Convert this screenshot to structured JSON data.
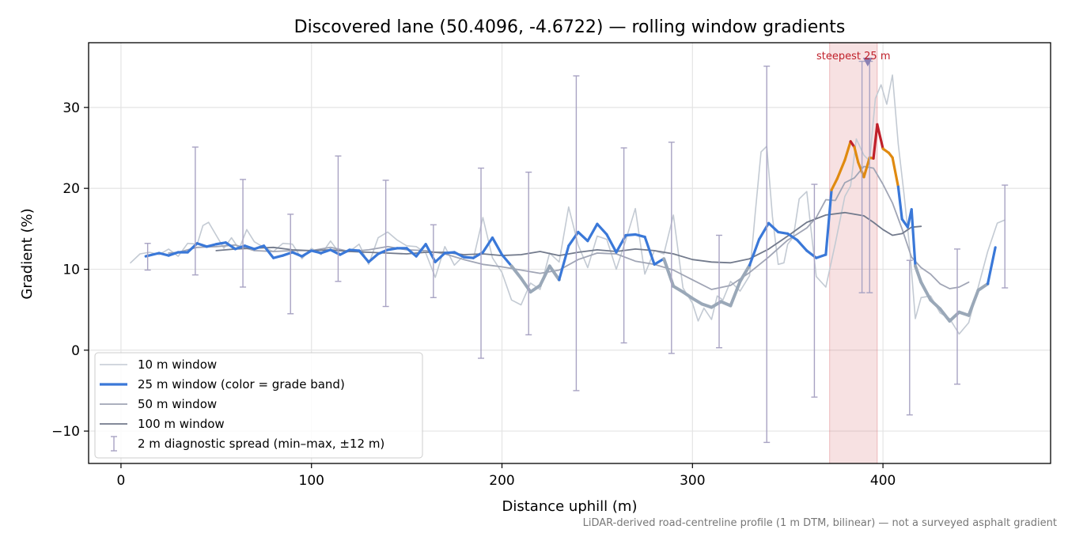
{
  "chart_data": {
    "type": "line",
    "title": "Discovered lane (50.4096, -4.6722) — rolling window gradients",
    "xlabel": "Distance uphill (m)",
    "ylabel": "Gradient (%)",
    "xlim": [
      -17,
      488
    ],
    "ylim": [
      -14,
      38
    ],
    "x_ticks": [
      0,
      100,
      200,
      300,
      400
    ],
    "y_ticks": [
      -10,
      0,
      10,
      20,
      30
    ],
    "x_tick_labels": [
      "0",
      "100",
      "200",
      "300",
      "400"
    ],
    "y_tick_labels": [
      "−10",
      "0",
      "10",
      "20",
      "30"
    ],
    "grid": true,
    "legend_position": "lower-left",
    "footnote": "LiDAR-derived road-centreline profile (1 m DTM, bilinear) — not a surveyed asphalt gradient",
    "highlight": {
      "label": "steepest 25 m",
      "x_start": 372,
      "x_end": 397,
      "marker_x": 392
    },
    "grade_band_colors": {
      "over_25": "#c0202a",
      "20_to_25": "#e08a10",
      "10_to_20": "#3a78d8",
      "under_10": "#9aa8b8"
    },
    "series": [
      {
        "name": "10 m window",
        "color": "#c3cad3",
        "x": [
          5,
          10,
          15,
          20,
          25,
          30,
          35,
          40,
          43,
          46,
          50,
          54,
          58,
          62,
          66,
          70,
          75,
          80,
          85,
          90,
          95,
          100,
          105,
          110,
          115,
          120,
          125,
          130,
          135,
          140,
          145,
          150,
          155,
          160,
          165,
          170,
          175,
          180,
          185,
          190,
          195,
          200,
          205,
          210,
          215,
          220,
          225,
          230,
          235,
          240,
          245,
          250,
          255,
          260,
          265,
          270,
          275,
          280,
          285,
          290,
          295,
          300,
          303,
          306,
          310,
          313,
          316,
          320,
          325,
          330,
          333,
          336,
          339,
          342,
          345,
          348,
          350,
          353,
          356,
          360,
          365,
          370,
          375,
          380,
          383,
          386,
          390,
          393,
          396,
          399,
          402,
          405,
          408,
          411,
          414,
          417,
          420,
          425,
          430,
          435,
          440,
          445,
          450,
          455,
          460,
          464
        ],
        "values": [
          10.8,
          11.9,
          12.1,
          11.8,
          12.5,
          11.6,
          13.2,
          13.1,
          15.4,
          15.8,
          14.2,
          12.6,
          13.9,
          12.5,
          14.9,
          13.4,
          12.7,
          12.2,
          13.2,
          13.1,
          11.3,
          12.6,
          11.8,
          13.5,
          11.9,
          12.2,
          13.1,
          10.6,
          13.9,
          14.6,
          13.6,
          12.9,
          12.8,
          12.0,
          9.0,
          12.8,
          10.5,
          11.7,
          11.3,
          16.4,
          11.4,
          9.6,
          6.2,
          5.6,
          8.3,
          7.5,
          12.0,
          10.9,
          17.7,
          13.0,
          10.2,
          14.1,
          13.7,
          10.0,
          13.6,
          17.5,
          9.4,
          12.3,
          11.9,
          16.7,
          7.7,
          5.8,
          3.6,
          5.2,
          3.8,
          6.7,
          6.2,
          8.5,
          7.3,
          9.2,
          17.1,
          24.5,
          25.2,
          16.5,
          10.6,
          10.8,
          13.1,
          14.0,
          18.7,
          19.6,
          9.1,
          7.8,
          13.2,
          19.0,
          20.3,
          26.1,
          24.1,
          23.4,
          31.1,
          32.8,
          30.4,
          34.0,
          25.5,
          19.4,
          12.7,
          3.9,
          6.5,
          6.7,
          4.6,
          3.9,
          2.0,
          3.4,
          7.8,
          12.2,
          15.7,
          16.1
        ]
      },
      {
        "name": "25 m window (color = grade band)",
        "color": "#3a78d8",
        "x": [
          13,
          20,
          25,
          30,
          35,
          40,
          45,
          50,
          55,
          60,
          65,
          70,
          75,
          80,
          85,
          90,
          95,
          100,
          105,
          110,
          115,
          120,
          125,
          130,
          135,
          140,
          145,
          150,
          155,
          160,
          165,
          170,
          175,
          180,
          185,
          190,
          195,
          200,
          205,
          210,
          215,
          220,
          225,
          230,
          235,
          240,
          245,
          250,
          255,
          260,
          265,
          270,
          275,
          280,
          285,
          290,
          295,
          300,
          305,
          310,
          315,
          320,
          325,
          330,
          335,
          340,
          345,
          350,
          355,
          360,
          365,
          370,
          373,
          376,
          380,
          383,
          385,
          387,
          390,
          393,
          395,
          397,
          400,
          403,
          405,
          408,
          410,
          413,
          415,
          417,
          420,
          425,
          430,
          435,
          440,
          445,
          450,
          455,
          459
        ],
        "values": [
          11.6,
          12.0,
          11.7,
          12.1,
          12.1,
          13.2,
          12.8,
          13.1,
          13.3,
          12.5,
          12.9,
          12.5,
          12.9,
          11.4,
          11.7,
          12.1,
          11.6,
          12.3,
          12.0,
          12.4,
          11.8,
          12.4,
          12.3,
          10.9,
          11.9,
          12.4,
          12.6,
          12.6,
          11.6,
          13.1,
          10.9,
          12.0,
          12.1,
          11.5,
          11.4,
          12.1,
          13.9,
          11.8,
          10.4,
          8.9,
          7.2,
          8.0,
          10.4,
          8.7,
          12.9,
          14.6,
          13.5,
          15.6,
          14.3,
          12.1,
          14.2,
          14.3,
          14.0,
          10.6,
          11.3,
          7.9,
          7.2,
          6.4,
          5.7,
          5.3,
          6.0,
          5.5,
          8.5,
          10.5,
          13.7,
          15.7,
          14.6,
          14.4,
          13.6,
          12.3,
          11.4,
          11.8,
          19.8,
          21.2,
          23.5,
          25.8,
          25.1,
          23.2,
          21.4,
          23.8,
          23.7,
          27.9,
          24.9,
          24.4,
          23.8,
          20.2,
          16.2,
          15.2,
          17.4,
          10.4,
          8.4,
          6.2,
          5.1,
          3.6,
          4.7,
          4.3,
          7.4,
          8.2,
          12.7
        ]
      },
      {
        "name": "50 m window",
        "color": "#a0a5b5",
        "x": [
          25,
          30,
          40,
          50,
          60,
          70,
          80,
          90,
          100,
          110,
          120,
          130,
          140,
          150,
          160,
          170,
          180,
          190,
          200,
          210,
          220,
          230,
          240,
          250,
          260,
          270,
          280,
          290,
          300,
          310,
          320,
          330,
          340,
          350,
          360,
          365,
          370,
          375,
          380,
          385,
          390,
          395,
          400,
          405,
          410,
          415,
          420,
          425,
          430,
          435,
          440,
          445
        ],
        "values": [
          12.0,
          12.1,
          12.7,
          12.8,
          13.0,
          12.3,
          12.2,
          12.3,
          12.3,
          12.7,
          12.2,
          12.4,
          12.8,
          12.4,
          12.3,
          11.9,
          11.2,
          10.6,
          10.3,
          9.9,
          9.5,
          9.9,
          11.2,
          12.0,
          11.9,
          11.0,
          10.6,
          9.9,
          8.7,
          7.5,
          8.0,
          9.6,
          11.5,
          13.6,
          15.1,
          16.4,
          18.6,
          18.5,
          20.7,
          21.3,
          22.7,
          22.5,
          20.5,
          18.2,
          15.0,
          11.5,
          10.2,
          9.4,
          8.2,
          7.6,
          7.8,
          8.4
        ]
      },
      {
        "name": "100 m window",
        "color": "#727a8c",
        "x": [
          50,
          60,
          70,
          80,
          90,
          100,
          110,
          120,
          130,
          140,
          150,
          160,
          170,
          180,
          190,
          200,
          210,
          220,
          230,
          240,
          250,
          260,
          270,
          280,
          290,
          300,
          310,
          320,
          330,
          340,
          350,
          360,
          370,
          380,
          390,
          395,
          400,
          405,
          410,
          415,
          420
        ],
        "values": [
          12.3,
          12.5,
          12.6,
          12.7,
          12.4,
          12.3,
          12.4,
          12.2,
          12.1,
          12.0,
          11.9,
          12.1,
          12.1,
          11.8,
          11.9,
          11.7,
          11.8,
          12.2,
          11.7,
          12.1,
          12.4,
          12.2,
          12.5,
          12.3,
          11.9,
          11.2,
          10.9,
          10.8,
          11.3,
          12.5,
          14.1,
          15.8,
          16.7,
          17.0,
          16.6,
          15.8,
          14.9,
          14.2,
          14.4,
          15.2,
          15.3
        ]
      }
    ],
    "error_bars": {
      "name": "2 m diagnostic spread (min–max, ±12 m)",
      "color": "#a8a3c3",
      "items": [
        {
          "x": 14,
          "low": 9.9,
          "high": 13.2
        },
        {
          "x": 39,
          "low": 9.3,
          "high": 25.1
        },
        {
          "x": 64,
          "low": 7.8,
          "high": 21.1
        },
        {
          "x": 89,
          "low": 4.5,
          "high": 16.8
        },
        {
          "x": 114,
          "low": 8.5,
          "high": 24.0
        },
        {
          "x": 139,
          "low": 5.4,
          "high": 21.0
        },
        {
          "x": 164,
          "low": 6.5,
          "high": 15.5
        },
        {
          "x": 189,
          "low": -1.0,
          "high": 22.5
        },
        {
          "x": 214,
          "low": 1.9,
          "high": 22.0
        },
        {
          "x": 239,
          "low": -5.0,
          "high": 33.9
        },
        {
          "x": 264,
          "low": 0.9,
          "high": 25.0
        },
        {
          "x": 289,
          "low": -0.4,
          "high": 25.7
        },
        {
          "x": 314,
          "low": 0.3,
          "high": 14.2
        },
        {
          "x": 339,
          "low": -11.4,
          "high": 35.1
        },
        {
          "x": 364,
          "low": -5.8,
          "high": 20.5
        },
        {
          "x": 389,
          "low": 7.1,
          "high": 35.7
        },
        {
          "x": 393,
          "low": 7.1,
          "high": 35.7
        },
        {
          "x": 414,
          "low": -8.0,
          "high": 11.1
        },
        {
          "x": 439,
          "low": -4.2,
          "high": 12.5
        },
        {
          "x": 464,
          "low": 7.7,
          "high": 20.4
        }
      ]
    }
  }
}
